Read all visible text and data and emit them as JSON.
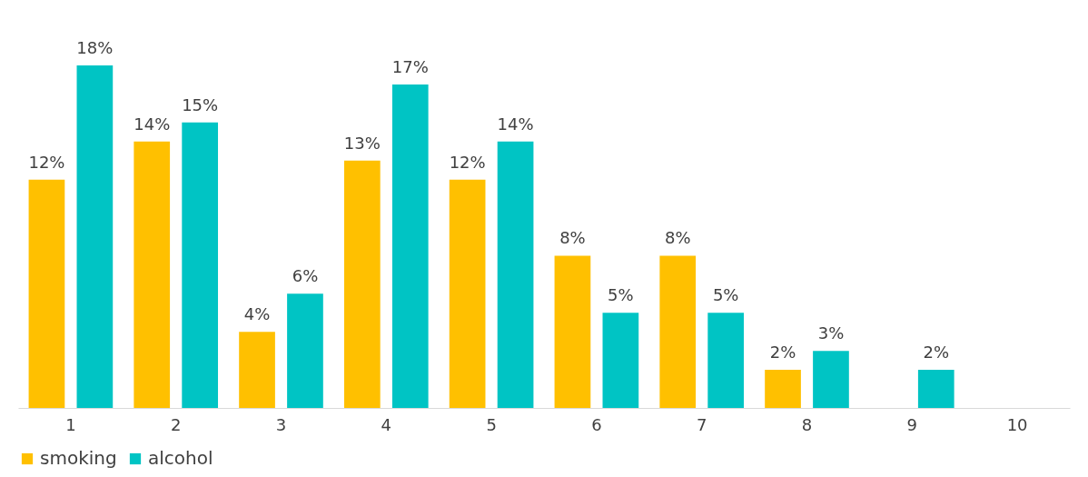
{
  "chart_data": {
    "type": "bar",
    "categories": [
      "1",
      "2",
      "3",
      "4",
      "5",
      "6",
      "7",
      "8",
      "9",
      "10"
    ],
    "series": [
      {
        "name": "smoking",
        "color": "#ffc000",
        "values": [
          12,
          14,
          4,
          13,
          12,
          8,
          8,
          2,
          null,
          null
        ],
        "value_labels": [
          "12%",
          "14%",
          "4%",
          "13%",
          "12%",
          "8%",
          "8%",
          "2%",
          null,
          null
        ]
      },
      {
        "name": "alcohol",
        "color": "#00c4c4",
        "values": [
          18,
          15,
          6,
          17,
          14,
          5,
          5,
          3,
          2,
          null
        ],
        "value_labels": [
          "18%",
          "15%",
          "6%",
          "17%",
          "14%",
          "5%",
          "5%",
          "3%",
          "2%",
          null
        ]
      }
    ],
    "legend": "bottom",
    "grid": false
  }
}
